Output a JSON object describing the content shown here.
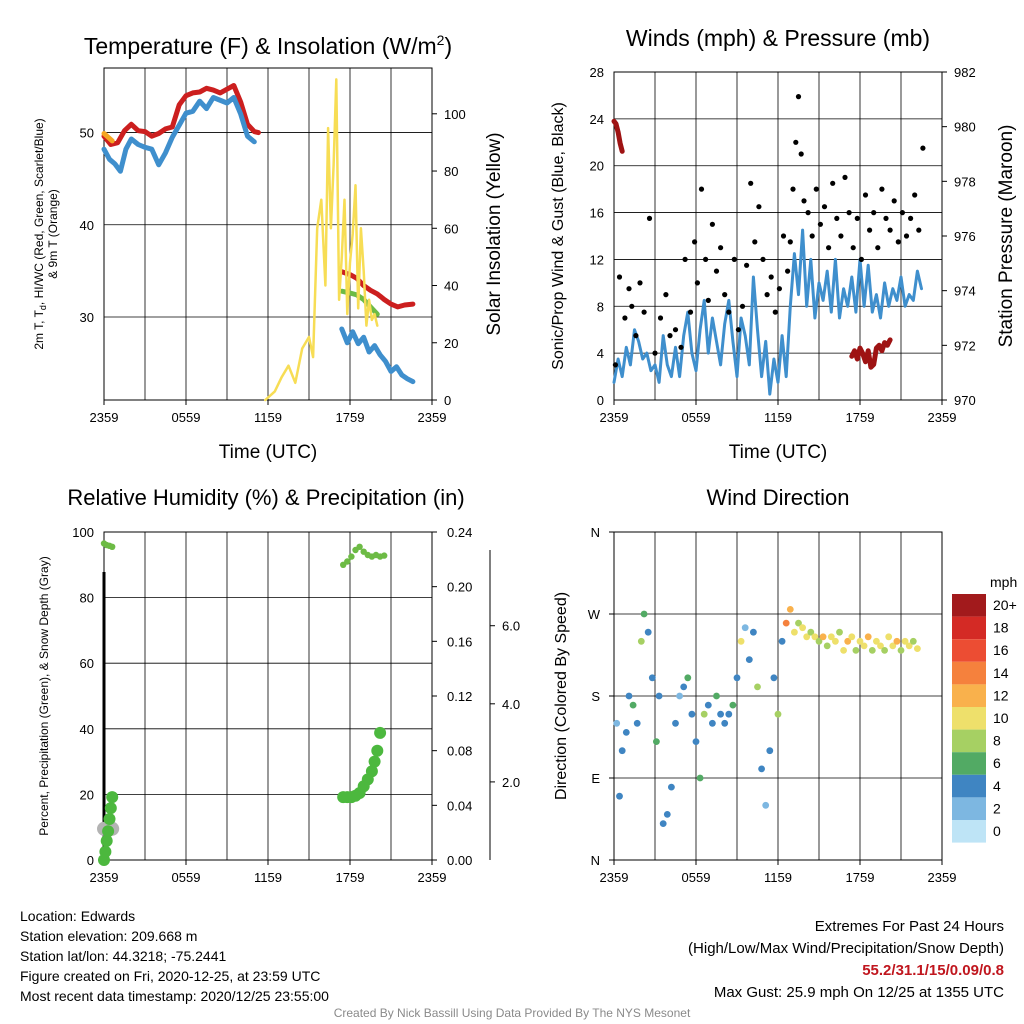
{
  "station": {
    "location": "Location: Edwards",
    "elevation": "Station elevation: 209.668 m",
    "latlon": "Station lat/lon: 44.3218; -75.2441",
    "created": "Figure created on Fri, 2020-12-25, at 23:59 UTC",
    "latest": "Most recent data timestamp: 2020/12/25 23:55:00"
  },
  "extremes": {
    "title": "Extremes For Past 24 Hours",
    "subtitle": "(High/Low/Max Wind/Precipitation/Snow Depth)",
    "values": "55.2/31.1/15/0.09/0.8",
    "gust": "Max Gust: 25.9 mph On 12/25 at 1355 UTC"
  },
  "credit": "Created By Nick Bassill Using Data Provided By The NYS Mesonet",
  "colors": {
    "temp_red": "#cc1f1f",
    "blue": "#3f8fcd",
    "green": "#6dbb45",
    "orange": "#f5a623",
    "yellow": "#f7dd55",
    "gray": "#b3b3b3",
    "maroon": "#9e1313",
    "black": "#000000"
  },
  "chart_data": [
    {
      "type": "line",
      "title_prefix": "Temperature (F) & Insolation (W/m",
      "title_sup": "2",
      "title_suffix": ")",
      "xlabel": "Time (UTC)",
      "ylabel_left_1": "2m T, T",
      "ylabel_left_sub": "d",
      "ylabel_left_2": ", HI/WC (Red, Green, Scarlet/Blue)",
      "ylabel_left_3": "& 9m T (Orange)",
      "ylabel_right": "Solar Insolation (Yellow)",
      "xticks": [
        "2359",
        "0559",
        "1159",
        "1759",
        "2359"
      ],
      "xlim": [
        0,
        24
      ],
      "ylim_left": [
        21,
        57
      ],
      "yticks_left": [
        30,
        40,
        50
      ],
      "ylim_right": [
        0,
        116
      ],
      "yticks_right": [
        0,
        20,
        40,
        60,
        80,
        100
      ],
      "series": [
        {
          "name": "2m T",
          "color_key": "temp_red",
          "x": [
            0,
            0.5,
            1.0,
            1.5,
            2.0,
            2.5,
            3.0,
            3.5,
            4.0,
            4.5,
            5.0,
            5.5,
            6.0,
            6.5,
            7.0,
            7.5,
            8.0,
            8.5,
            9.0,
            9.5,
            10.0,
            10.5,
            11.0,
            11.3
          ],
          "y": [
            49.6,
            48.7,
            48.9,
            50.2,
            50.9,
            50.2,
            50.1,
            49.6,
            49.9,
            50.4,
            50.6,
            53.0,
            54.0,
            54.3,
            54.4,
            54.8,
            54.6,
            54.3,
            54.7,
            55.1,
            53.3,
            50.9,
            50.1,
            50.0
          ]
        },
        {
          "name": "HI/WC",
          "color_key": "blue",
          "x": [
            0,
            0.4,
            0.8,
            1.2,
            1.6,
            2.0,
            2.5,
            3.0,
            3.5,
            4.0,
            4.5,
            5.0,
            5.5,
            6.0,
            6.5,
            7.0,
            7.5,
            8.0,
            9.0,
            9.5,
            10.0,
            10.5,
            11.0
          ],
          "y": [
            48.2,
            47.1,
            46.6,
            45.8,
            48.2,
            49.3,
            48.7,
            48.4,
            48.2,
            46.5,
            47.8,
            49.5,
            50.8,
            52.1,
            52.3,
            53.4,
            52.6,
            53.8,
            53.2,
            53.8,
            52.0,
            49.6,
            49.0
          ]
        },
        {
          "name": "9m T",
          "color_key": "orange",
          "x": [
            0,
            0.3,
            0.6
          ],
          "y": [
            49.9,
            49.5,
            49.1
          ]
        },
        {
          "name": "2m T (evening)",
          "color_key": "temp_red",
          "x": [
            17.4,
            18.0,
            18.5,
            19.0,
            19.5,
            20.0,
            20.5,
            21.0,
            21.5,
            22.0,
            22.6
          ],
          "y": [
            34.9,
            34.6,
            34.2,
            33.4,
            32.9,
            32.5,
            31.9,
            31.4,
            31.1,
            31.3,
            31.4
          ]
        },
        {
          "name": "Td",
          "color_key": "green",
          "x": [
            17.4,
            18.0,
            18.5,
            19.0,
            19.5,
            20.0
          ],
          "y": [
            32.8,
            32.6,
            32.4,
            31.9,
            31.1,
            30.3
          ]
        },
        {
          "name": "HI/WC (evening)",
          "color_key": "blue",
          "x": [
            17.4,
            17.8,
            18.2,
            18.6,
            19.0,
            19.4,
            19.8,
            20.2,
            20.6,
            21.0,
            21.4,
            21.8,
            22.2,
            22.6
          ],
          "y": [
            28.7,
            27.2,
            28.4,
            27.1,
            27.8,
            26.2,
            26.9,
            25.9,
            25.2,
            24.1,
            24.6,
            23.7,
            23.3,
            23.0
          ]
        },
        {
          "name": "Solar Insolation",
          "color_key": "yellow",
          "axis": "right",
          "x": [
            11.8,
            12.5,
            13.0,
            13.5,
            14.0,
            14.5,
            15.0,
            15.3,
            15.6,
            15.9,
            16.2,
            16.4,
            16.6,
            16.8,
            17.0,
            17.2,
            17.4,
            17.6,
            17.8,
            18.0,
            18.2,
            18.4,
            18.6,
            18.8,
            19.0,
            19.2,
            19.4,
            19.6,
            19.8,
            20.0
          ],
          "y": [
            0,
            3,
            8,
            12,
            6,
            18,
            22,
            15,
            60,
            70,
            40,
            95,
            60,
            82,
            112,
            35,
            50,
            70,
            30,
            48,
            58,
            75,
            32,
            60,
            45,
            26,
            35,
            28,
            30,
            26
          ]
        }
      ]
    },
    {
      "type": "scatter",
      "title": "Winds (mph) & Pressure (mb)",
      "xlabel": "Time (UTC)",
      "ylabel_left": "Sonic/Prop Wind & Gust (Blue, Black)",
      "ylabel_right": "Station Pressure (Maroon)",
      "xticks": [
        "2359",
        "0559",
        "1159",
        "1759",
        "2359"
      ],
      "xlim": [
        0,
        24
      ],
      "ylim_left": [
        0,
        28
      ],
      "yticks_left": [
        0,
        4,
        8,
        12,
        16,
        20,
        24,
        28
      ],
      "ylim_right": [
        970,
        982
      ],
      "yticks_right": [
        970,
        972,
        974,
        976,
        978,
        980,
        982
      ],
      "wind_x": [
        0,
        0.3,
        0.6,
        0.9,
        1.2,
        1.5,
        1.8,
        2.1,
        2.4,
        2.7,
        3.0,
        3.3,
        3.6,
        3.9,
        4.2,
        4.5,
        4.8,
        5.1,
        5.4,
        5.7,
        6.0,
        6.3,
        6.6,
        6.9,
        7.2,
        7.5,
        7.8,
        8.1,
        8.4,
        8.7,
        9.0,
        9.3,
        9.6,
        9.9,
        10.2,
        10.5,
        10.8,
        11.1,
        11.4,
        11.7,
        12.0,
        12.3,
        12.6,
        12.9,
        13.2,
        13.5,
        13.8,
        14.1,
        14.4,
        14.7,
        15.0,
        15.3,
        15.6,
        15.9,
        16.2,
        16.5,
        16.8,
        17.1,
        17.4,
        17.7,
        18.0,
        18.3,
        18.6,
        18.9,
        19.2,
        19.5,
        19.8,
        20.1,
        20.4,
        20.7,
        21.0,
        21.3,
        21.6,
        21.9,
        22.2,
        22.5
      ],
      "wind_y": [
        1.5,
        3.5,
        2.0,
        4.5,
        3.0,
        6.0,
        5.0,
        3.5,
        4.0,
        2.5,
        3.0,
        1.5,
        5.5,
        3.0,
        2.0,
        4.5,
        2.0,
        5.5,
        7.5,
        4.0,
        2.5,
        6.0,
        8.5,
        4.0,
        7.0,
        5.0,
        3.0,
        6.5,
        8.5,
        5.0,
        2.0,
        7.0,
        5.5,
        3.0,
        10.5,
        6.0,
        2.0,
        5.0,
        0.5,
        3.5,
        1.5,
        5.5,
        2.0,
        8.0,
        12.5,
        9.0,
        14.5,
        8.0,
        12.0,
        7.0,
        10.0,
        8.5,
        11.0,
        7.5,
        12.0,
        7.0,
        9.5,
        8.0,
        10.5,
        7.5,
        12.0,
        8.0,
        11.5,
        7.5,
        9.0,
        7.0,
        10.0,
        8.0,
        9.5,
        8.5,
        10.5,
        8.0,
        9.0,
        8.5,
        11.0,
        9.5
      ],
      "gust_x": [
        0.1,
        0.4,
        0.8,
        1.1,
        1.3,
        1.6,
        1.9,
        2.2,
        2.6,
        3.0,
        3.4,
        3.8,
        4.1,
        4.5,
        4.9,
        5.2,
        5.6,
        5.9,
        6.1,
        6.4,
        6.7,
        6.9,
        7.2,
        7.5,
        7.8,
        8.1,
        8.4,
        8.8,
        9.1,
        9.4,
        9.7,
        10.0,
        10.3,
        10.6,
        10.9,
        11.2,
        11.5,
        11.8,
        12.1,
        12.4,
        12.7,
        12.9,
        13.1,
        13.3,
        13.5,
        13.7,
        13.9,
        14.2,
        14.5,
        14.8,
        15.1,
        15.4,
        15.7,
        16.0,
        16.3,
        16.6,
        16.9,
        17.2,
        17.5,
        17.8,
        18.1,
        18.4,
        18.7,
        19.0,
        19.3,
        19.6,
        19.9,
        20.2,
        20.5,
        20.8,
        21.1,
        21.4,
        21.7,
        22.0,
        22.3,
        22.6
      ],
      "gust_y": [
        3.0,
        10.5,
        7.0,
        9.5,
        8.0,
        5.5,
        10.0,
        7.5,
        15.5,
        4.0,
        7.0,
        9.0,
        5.5,
        6.0,
        4.5,
        12.0,
        7.5,
        13.5,
        10.0,
        18.0,
        12.0,
        8.5,
        15.0,
        11.0,
        13.0,
        9.0,
        7.5,
        12.0,
        6.0,
        8.0,
        11.5,
        18.5,
        13.5,
        16.5,
        12.0,
        9.0,
        10.5,
        7.5,
        9.5,
        14.0,
        11.0,
        13.5,
        18.0,
        22.0,
        25.9,
        21.0,
        17.0,
        16.0,
        14.0,
        18.0,
        15.0,
        16.5,
        13.0,
        18.5,
        15.5,
        14.0,
        19.0,
        16.0,
        13.0,
        15.5,
        12.0,
        17.5,
        14.5,
        16.0,
        13.0,
        18.0,
        15.5,
        14.5,
        17.0,
        13.5,
        16.0,
        14.0,
        15.5,
        17.5,
        14.5,
        21.5
      ],
      "pressure_x": [
        0,
        0.15,
        0.3,
        0.45,
        0.6,
        17.4,
        17.6,
        17.8,
        18.0,
        18.2,
        18.4,
        18.6,
        18.8,
        19.0,
        19.2,
        19.4,
        19.6,
        19.8,
        20.0,
        20.2
      ],
      "pressure_y": [
        980.2,
        980.1,
        979.8,
        979.4,
        979.1,
        971.6,
        971.8,
        971.5,
        971.9,
        971.7,
        971.4,
        971.8,
        971.2,
        971.3,
        971.9,
        972.0,
        971.8,
        972.1,
        972.0,
        972.2
      ]
    },
    {
      "type": "scatter",
      "title": "Relative Humidity (%) & Precipitation (in)",
      "ylabel_left": "Percent, Precipitation (Green), & Snow Depth (Gray)",
      "xticks": [
        "2359",
        "0559",
        "1159",
        "1759",
        "2359"
      ],
      "xlim": [
        0,
        24
      ],
      "ylim_left": [
        0,
        100
      ],
      "yticks_left": [
        0,
        20,
        40,
        60,
        80,
        100
      ],
      "ylim_precip": [
        0,
        0.24
      ],
      "yticks_precip": [
        "0.00",
        "0.04",
        "0.08",
        "0.12",
        "0.16",
        "0.20",
        "0.24"
      ],
      "ylim_snow": [
        0,
        8.4
      ],
      "yticks_snow": [
        "2.0",
        "4.0",
        "6.0"
      ],
      "rh_x": [
        0,
        0.2,
        0.4,
        0.6,
        17.5,
        17.8,
        18.1,
        18.4,
        18.7,
        19.0,
        19.3,
        19.6,
        19.9,
        20.2,
        20.5
      ],
      "rh_y": [
        96.5,
        96.0,
        95.8,
        95.5,
        90.0,
        91.0,
        92.5,
        94.5,
        95.5,
        94.0,
        93.0,
        92.5,
        93.0,
        92.5,
        92.8
      ],
      "precip_x": [
        0,
        0.1,
        0.2,
        0.3,
        0.4,
        0.5,
        0.6,
        17.5,
        17.8,
        18.1,
        18.4,
        18.7,
        19.0,
        19.3,
        19.6,
        19.8,
        20.0,
        20.2
      ],
      "precip_y": [
        0.0,
        0.006,
        0.014,
        0.021,
        0.03,
        0.038,
        0.046,
        0.046,
        0.046,
        0.046,
        0.047,
        0.049,
        0.054,
        0.059,
        0.065,
        0.072,
        0.08,
        0.093
      ],
      "snow_x": [
        0,
        0.3,
        0.6
      ],
      "snow_y": [
        0.8,
        0.8,
        0.8
      ]
    },
    {
      "type": "scatter",
      "title": "Wind Direction",
      "ylabel": "Direction (Colored By Speed)",
      "xticks": [
        "2359",
        "0559",
        "1159",
        "1759",
        "2359"
      ],
      "xlim": [
        0,
        24
      ],
      "ylim": [
        0,
        360
      ],
      "ytick_labels": [
        "N",
        "E",
        "S",
        "W",
        "N"
      ],
      "legend_unit": "mph",
      "legend_labels": [
        "20+",
        "18",
        "16",
        "14",
        "12",
        "10",
        "8",
        "6",
        "4",
        "2",
        "0"
      ],
      "legend_colors": [
        "#a21a1c",
        "#d42a25",
        "#ec4d33",
        "#f5813d",
        "#f9b14c",
        "#eee06b",
        "#a6d063",
        "#52aa64",
        "#3f85c2",
        "#7db7e1",
        "#bee4f6"
      ],
      "x": [
        0.2,
        0.4,
        0.6,
        0.9,
        1.1,
        1.4,
        1.7,
        2.0,
        2.2,
        2.5,
        2.8,
        3.1,
        3.3,
        3.6,
        3.9,
        4.2,
        4.5,
        4.8,
        5.1,
        5.4,
        5.7,
        6.0,
        6.3,
        6.6,
        6.9,
        7.2,
        7.5,
        7.8,
        8.1,
        8.4,
        8.7,
        9.0,
        9.3,
        9.6,
        9.9,
        10.2,
        10.5,
        10.8,
        11.1,
        11.4,
        11.7,
        12.0,
        12.3,
        12.6,
        12.9,
        13.2,
        13.5,
        13.8,
        14.1,
        14.4,
        14.7,
        15.0,
        15.3,
        15.6,
        15.9,
        16.2,
        16.5,
        16.8,
        17.1,
        17.4,
        17.7,
        18.0,
        18.3,
        18.6,
        18.9,
        19.2,
        19.5,
        19.8,
        20.1,
        20.4,
        20.7,
        21.0,
        21.3,
        21.6,
        21.9,
        22.2
      ],
      "y": [
        150,
        70,
        120,
        140,
        180,
        170,
        150,
        240,
        270,
        250,
        200,
        130,
        180,
        40,
        50,
        80,
        150,
        180,
        190,
        200,
        160,
        130,
        90,
        160,
        170,
        150,
        180,
        160,
        150,
        160,
        170,
        200,
        240,
        255,
        220,
        250,
        190,
        100,
        60,
        120,
        200,
        160,
        240,
        260,
        275,
        250,
        260,
        255,
        245,
        250,
        245,
        240,
        245,
        235,
        245,
        240,
        250,
        230,
        240,
        245,
        230,
        240,
        235,
        245,
        230,
        240,
        235,
        230,
        245,
        235,
        240,
        230,
        240,
        235,
        240,
        232
      ],
      "speed": [
        2,
        3,
        4,
        3,
        4,
        5,
        4,
        7,
        6,
        4,
        3,
        5,
        4,
        3,
        4,
        4,
        3,
        2,
        4,
        6,
        4,
        3,
        5,
        8,
        3,
        4,
        5,
        4,
        3,
        4,
        6,
        3,
        9,
        2,
        3,
        4,
        8,
        3,
        2,
        4,
        3,
        7,
        4,
        14,
        12,
        9,
        8,
        10,
        9,
        7,
        10,
        8,
        11,
        8,
        9,
        10,
        8,
        9,
        11,
        9,
        8,
        10,
        9,
        11,
        8,
        10,
        9,
        8,
        10,
        9,
        11,
        8,
        10,
        9,
        8,
        10
      ]
    }
  ]
}
